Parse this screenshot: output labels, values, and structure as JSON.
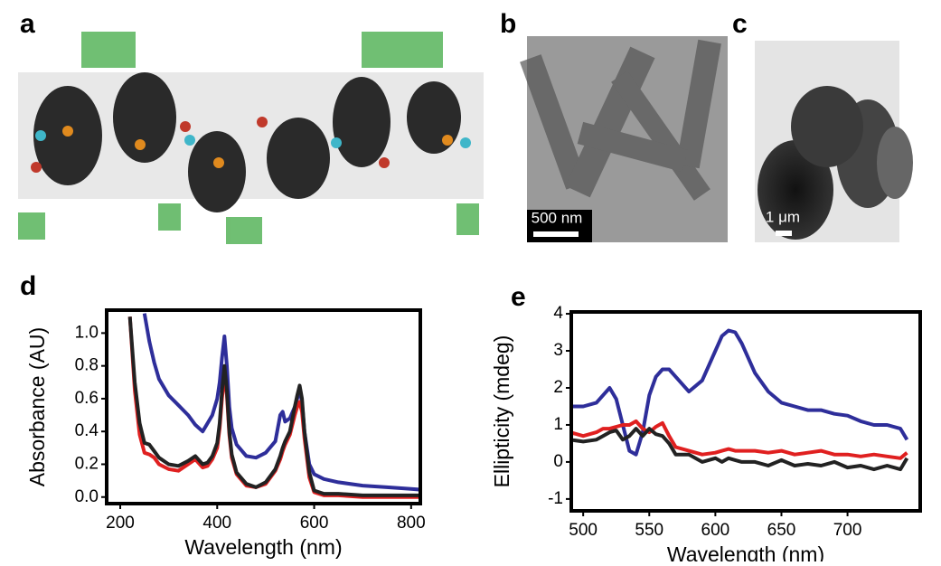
{
  "figure": {
    "panels": [
      {
        "label": "a"
      },
      {
        "label": "b",
        "scale_bar": "500 nm"
      },
      {
        "label": "c",
        "scale_bar": "1 μm"
      },
      {
        "label": "d"
      },
      {
        "label": "e"
      }
    ]
  },
  "chart_data": [
    {
      "type": "line",
      "xlabel": "Wavelength (nm)",
      "ylabel": "Absorbance (AU)",
      "xlim": [
        172,
        819
      ],
      "ylim": [
        -0.04,
        1.14
      ],
      "xticks": [
        200,
        400,
        600,
        800
      ],
      "yticks": [
        {
          "value": 0,
          "label": "0.0"
        },
        0.2,
        0.4,
        0.6,
        0.8,
        {
          "value": 1,
          "label": "1.0"
        }
      ],
      "x": [
        220,
        230,
        240,
        250,
        260,
        270,
        280,
        300,
        320,
        340,
        355,
        370,
        380,
        390,
        400,
        405,
        410,
        415,
        420,
        425,
        430,
        440,
        460,
        480,
        500,
        520,
        530,
        535,
        540,
        550,
        560,
        565,
        570,
        575,
        580,
        590,
        600,
        620,
        650,
        700,
        750,
        800,
        820
      ],
      "series": [
        {
          "color": "#2e2e9a",
          "values": [
            null,
            null,
            null,
            1.12,
            0.95,
            0.82,
            0.72,
            0.62,
            0.56,
            0.5,
            0.44,
            0.4,
            0.45,
            0.5,
            0.6,
            0.7,
            0.85,
            0.98,
            0.8,
            0.55,
            0.42,
            0.32,
            0.25,
            0.24,
            0.27,
            0.34,
            0.5,
            0.52,
            0.46,
            0.48,
            0.55,
            0.6,
            0.65,
            0.58,
            0.4,
            0.2,
            0.14,
            0.11,
            0.09,
            0.07,
            0.06,
            0.05,
            0.045
          ]
        },
        {
          "color": "#e02020",
          "values": [
            1.1,
            0.65,
            0.38,
            0.27,
            0.26,
            0.24,
            0.2,
            0.17,
            0.16,
            0.2,
            0.23,
            0.18,
            0.19,
            0.23,
            0.3,
            0.42,
            0.6,
            0.75,
            0.62,
            0.38,
            0.24,
            0.14,
            0.07,
            0.06,
            0.08,
            0.16,
            0.23,
            0.28,
            0.32,
            0.38,
            0.5,
            0.55,
            0.58,
            0.52,
            0.36,
            0.12,
            0.03,
            0.01,
            0.01,
            0,
            0,
            0,
            0
          ]
        },
        {
          "color": "#222222",
          "values": [
            1.1,
            0.7,
            0.45,
            0.33,
            0.32,
            0.28,
            0.24,
            0.2,
            0.19,
            0.22,
            0.25,
            0.2,
            0.21,
            0.25,
            0.33,
            0.45,
            0.65,
            0.8,
            0.65,
            0.4,
            0.26,
            0.15,
            0.08,
            0.06,
            0.09,
            0.17,
            0.25,
            0.3,
            0.34,
            0.4,
            0.55,
            0.62,
            0.68,
            0.6,
            0.4,
            0.15,
            0.04,
            0.02,
            0.02,
            0.01,
            0.01,
            0.01,
            0.01
          ]
        }
      ]
    },
    {
      "type": "line",
      "xlabel": "Wavelength (nm)",
      "ylabel": "Ellipticity (mdeg)",
      "xlim": [
        491,
        755
      ],
      "ylim": [
        -1.32,
        4.05
      ],
      "xticks": [
        500,
        550,
        600,
        650,
        700
      ],
      "yticks": [
        -1,
        0,
        1,
        2,
        3,
        4
      ],
      "x": [
        490,
        500,
        510,
        515,
        520,
        525,
        530,
        535,
        540,
        545,
        550,
        555,
        560,
        565,
        570,
        580,
        590,
        600,
        605,
        610,
        615,
        620,
        630,
        640,
        650,
        660,
        670,
        680,
        690,
        700,
        710,
        720,
        730,
        740,
        745
      ],
      "series": [
        {
          "color": "#2e2e9a",
          "values": [
            1.5,
            1.5,
            1.6,
            1.8,
            2.0,
            1.7,
            1.0,
            0.3,
            0.2,
            0.8,
            1.8,
            2.3,
            2.5,
            2.5,
            2.3,
            1.9,
            2.2,
            3.0,
            3.4,
            3.55,
            3.5,
            3.2,
            2.4,
            1.9,
            1.6,
            1.5,
            1.4,
            1.4,
            1.3,
            1.25,
            1.1,
            1.0,
            1.0,
            0.9,
            0.6
          ]
        },
        {
          "color": "#e02020",
          "values": [
            0.8,
            0.7,
            0.8,
            0.9,
            0.9,
            0.95,
            1.0,
            1.0,
            1.1,
            0.9,
            0.8,
            0.95,
            1.05,
            0.7,
            0.4,
            0.3,
            0.2,
            0.25,
            0.3,
            0.35,
            0.3,
            0.3,
            0.3,
            0.25,
            0.3,
            0.2,
            0.25,
            0.3,
            0.2,
            0.2,
            0.15,
            0.2,
            0.15,
            0.1,
            0.25
          ]
        },
        {
          "color": "#222222",
          "values": [
            0.6,
            0.55,
            0.6,
            0.7,
            0.8,
            0.85,
            0.6,
            0.7,
            0.9,
            0.7,
            0.9,
            0.75,
            0.7,
            0.5,
            0.2,
            0.2,
            0,
            0.1,
            0,
            0.1,
            0.05,
            0,
            0,
            -0.1,
            0.05,
            -0.1,
            -0.05,
            -0.1,
            0,
            -0.15,
            -0.1,
            -0.2,
            -0.1,
            -0.2,
            0.1
          ]
        }
      ]
    }
  ]
}
